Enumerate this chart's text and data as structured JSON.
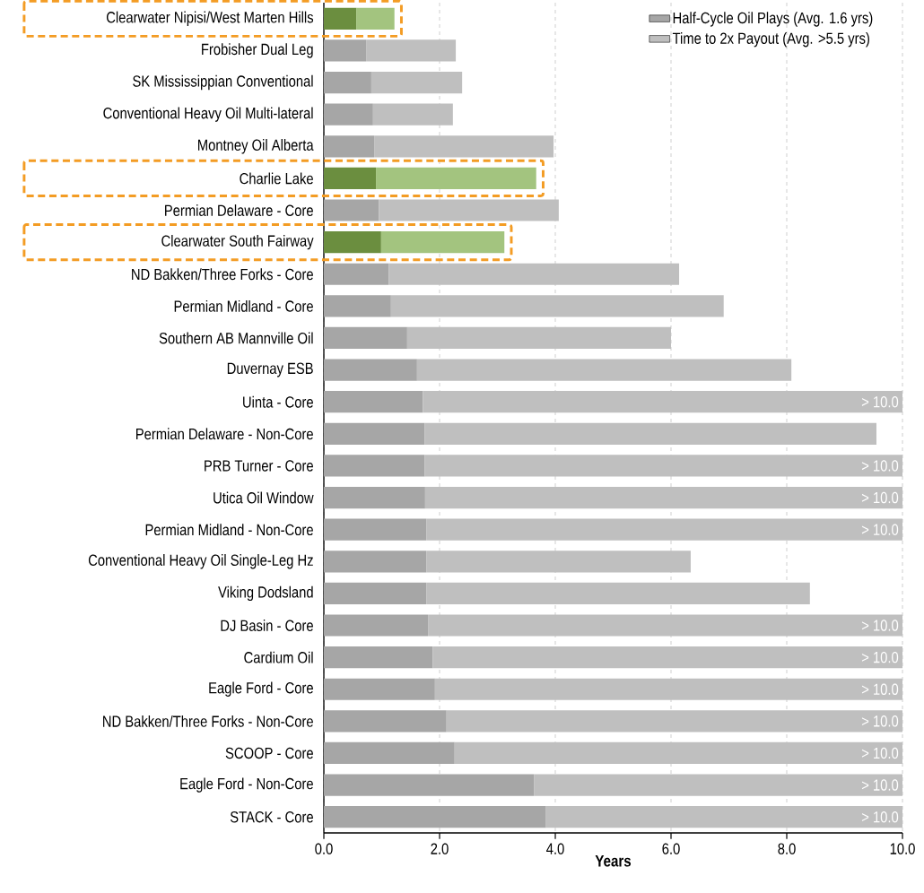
{
  "chart_data": {
    "type": "bar",
    "orientation": "horizontal",
    "stacked": true,
    "categories": [
      "Clearwater Nipisi/West Marten Hills",
      "Frobisher Dual Leg",
      "SK Mississippian Conventional",
      "Conventional Heavy Oil Multi-lateral",
      "Montney Oil Alberta",
      "Charlie Lake",
      "Permian Delaware - Core",
      "Clearwater South Fairway",
      "ND Bakken/Three Forks - Core",
      "Permian Midland - Core",
      "Southern AB Mannville Oil",
      "Duvernay ESB",
      "Uinta - Core",
      "Permian Delaware - Non-Core",
      "PRB Turner - Core",
      "Utica Oil Window",
      "Permian Midland - Non-Core",
      "Conventional Heavy Oil Single-Leg Hz",
      "Viking Dodsland",
      "DJ Basin - Core",
      "Cardium Oil",
      "Eagle Ford - Core",
      "ND Bakken/Three Forks - Non-Core",
      "SCOOP - Core",
      "Eagle Ford - Non-Core",
      "STACK - Core"
    ],
    "series": [
      {
        "name": "Half-Cycle Oil Plays (Avg. 1.6 yrs)",
        "color": "#a6a6a6",
        "colors": [
          "#6b8e3f",
          "#a6a6a6",
          "#a6a6a6",
          "#a6a6a6",
          "#a6a6a6",
          "#6b8e3f",
          "#a6a6a6",
          "#6b8e3f",
          "#a6a6a6",
          "#a6a6a6",
          "#a6a6a6",
          "#a6a6a6",
          "#a6a6a6",
          "#a6a6a6",
          "#a6a6a6",
          "#a6a6a6",
          "#a6a6a6",
          "#a6a6a6",
          "#a6a6a6",
          "#a6a6a6",
          "#a6a6a6",
          "#a6a6a6",
          "#a6a6a6",
          "#a6a6a6",
          "#a6a6a6",
          "#a6a6a6"
        ],
        "values": [
          0.56,
          0.73,
          0.82,
          0.85,
          0.87,
          0.9,
          0.95,
          0.99,
          1.12,
          1.16,
          1.44,
          1.61,
          1.71,
          1.74,
          1.74,
          1.75,
          1.77,
          1.77,
          1.77,
          1.8,
          1.88,
          1.92,
          2.12,
          2.26,
          3.63,
          3.84
        ]
      },
      {
        "name": "Time to 2x Payout (Avg. >5.5 yrs)",
        "color": "#bfbfbf",
        "colors": [
          "#a3c47f",
          "#bfbfbf",
          "#bfbfbf",
          "#bfbfbf",
          "#bfbfbf",
          "#a3c47f",
          "#bfbfbf",
          "#a3c47f",
          "#bfbfbf",
          "#bfbfbf",
          "#bfbfbf",
          "#bfbfbf",
          "#bfbfbf",
          "#bfbfbf",
          "#bfbfbf",
          "#bfbfbf",
          "#bfbfbf",
          "#bfbfbf",
          "#bfbfbf",
          "#bfbfbf",
          "#bfbfbf",
          "#bfbfbf",
          "#bfbfbf",
          "#bfbfbf",
          "#bfbfbf",
          "#bfbfbf"
        ],
        "values": [
          0.66,
          1.55,
          1.57,
          1.38,
          3.1,
          2.77,
          3.11,
          2.13,
          5.02,
          5.75,
          4.56,
          6.47,
          8.29,
          7.81,
          8.26,
          8.25,
          8.23,
          4.57,
          6.63,
          8.2,
          8.12,
          8.08,
          7.88,
          7.74,
          6.37,
          6.16
        ],
        "value_labels": [
          null,
          null,
          null,
          null,
          null,
          null,
          null,
          null,
          null,
          null,
          null,
          null,
          "> 10.0",
          null,
          "> 10.0",
          "> 10.0",
          "> 10.0",
          null,
          null,
          "> 10.0",
          "> 10.0",
          "> 10.0",
          "> 10.0",
          "> 10.0",
          "> 10.0",
          "> 10.0"
        ]
      }
    ],
    "xlabel": "Years",
    "xlim": [
      0,
      10
    ],
    "xticks": [
      {
        "value": 0,
        "label": "0.0"
      },
      {
        "value": 2,
        "label": "2.0"
      },
      {
        "value": 4,
        "label": "4.0"
      },
      {
        "value": 6,
        "label": "6.0"
      },
      {
        "value": 8,
        "label": "8.0"
      },
      {
        "value": 10,
        "label": "10.0"
      }
    ],
    "grid": "x",
    "legend": "top right"
  }
}
